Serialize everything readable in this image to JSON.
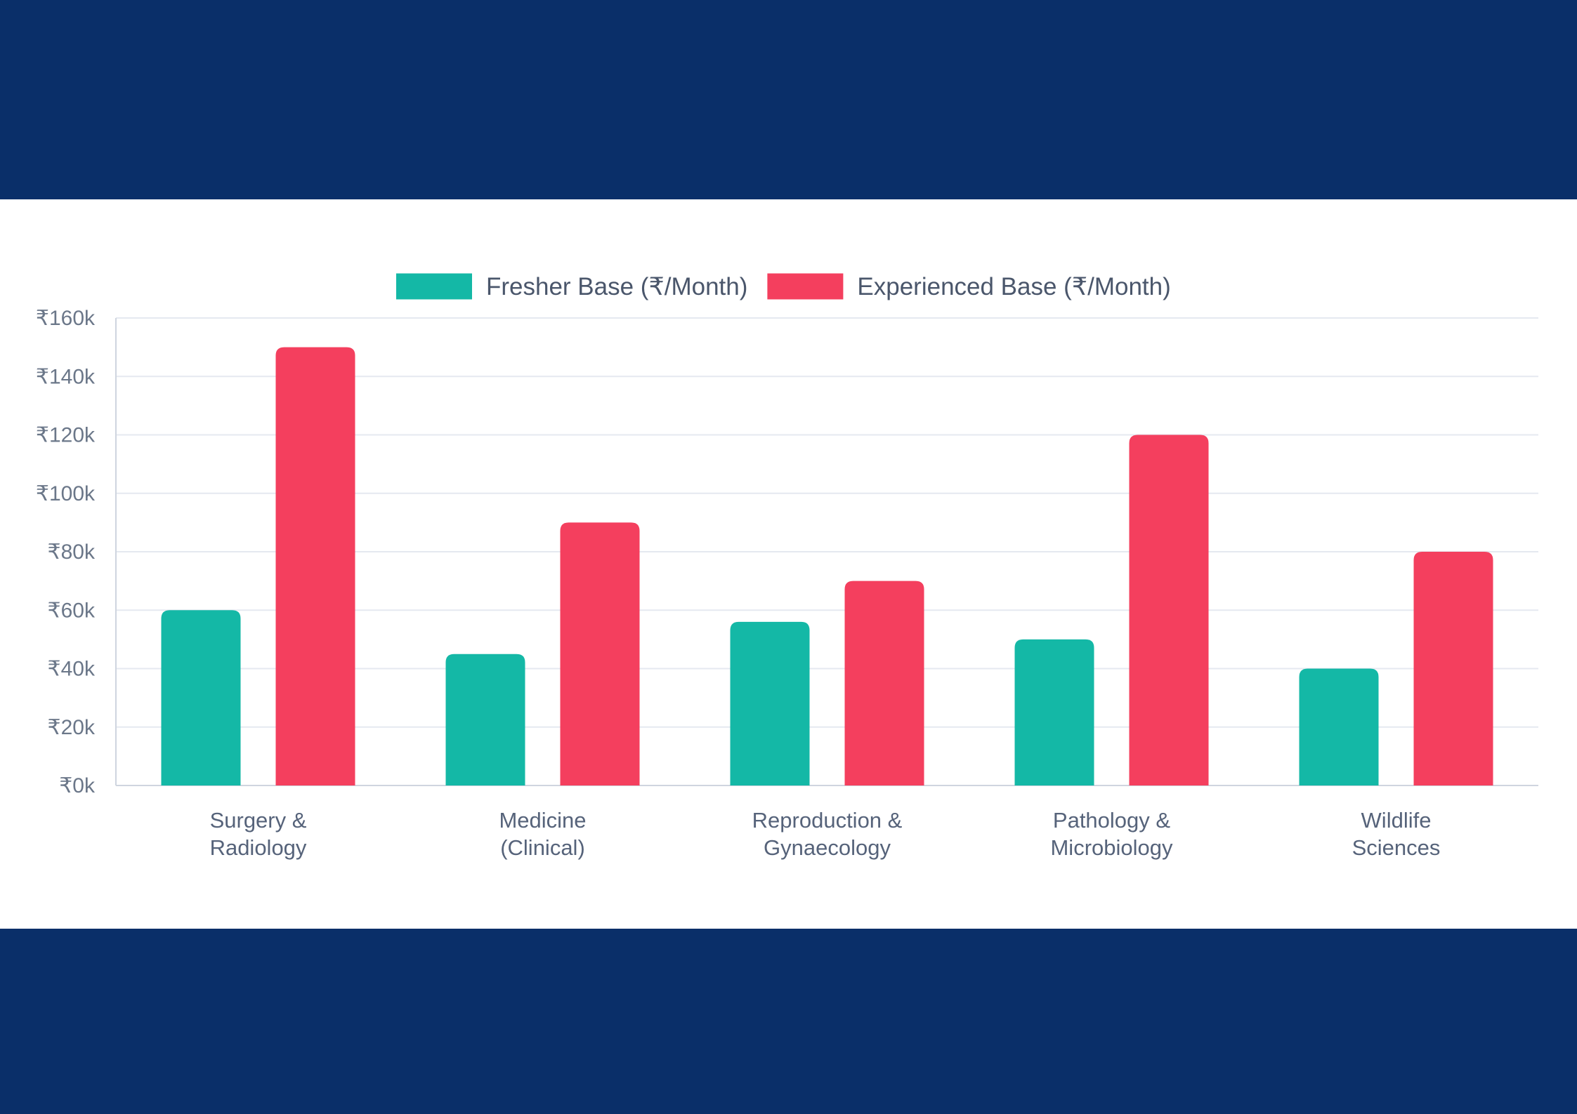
{
  "colors": {
    "background": "#0a2f69",
    "panel": "#ffffff",
    "fresher": "#14b8a6",
    "experienced": "#f43f5e",
    "grid": "#e5e9f0",
    "axis": "#cfd5df"
  },
  "chart_data": {
    "type": "bar",
    "title": "",
    "xlabel": "",
    "ylabel": "",
    "ylim": [
      0,
      160000
    ],
    "yticks": [
      0,
      20000,
      40000,
      60000,
      80000,
      100000,
      120000,
      140000,
      160000
    ],
    "ytick_labels": [
      "₹0k",
      "₹20k",
      "₹40k",
      "₹60k",
      "₹80k",
      "₹100k",
      "₹120k",
      "₹140k",
      "₹160k"
    ],
    "grid": true,
    "legend_position": "top-center",
    "categories": [
      [
        "Surgery &",
        "Radiology"
      ],
      [
        "Medicine",
        "(Clinical)"
      ],
      [
        "Reproduction &",
        "Gynaecology"
      ],
      [
        "Pathology &",
        "Microbiology"
      ],
      [
        "Wildlife",
        "Sciences"
      ]
    ],
    "series": [
      {
        "name": "Fresher Base (₹/Month)",
        "color": "#14b8a6",
        "values": [
          60000,
          45000,
          56000,
          50000,
          40000
        ]
      },
      {
        "name": "Experienced Base (₹/Month)",
        "color": "#f43f5e",
        "values": [
          150000,
          90000,
          70000,
          120000,
          80000
        ]
      }
    ]
  }
}
